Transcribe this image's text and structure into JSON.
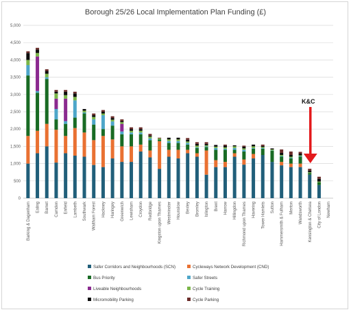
{
  "chart_data": {
    "type": "bar",
    "stacked": true,
    "title": "Borough 25/26 Local Implementation Plan Funding (£)",
    "ylim": [
      0,
      5000
    ],
    "ytick_step": 500,
    "y_tick_labels": [
      "0",
      "500",
      "1,000",
      "1,500",
      "2,000",
      "2,500",
      "3,000",
      "3,500",
      "4,000",
      "4,500",
      "5,000"
    ],
    "grid": true,
    "legend_position": "bottom",
    "categories": [
      "Barking & Dagenham",
      "Ealing",
      "Barnet",
      "Camden",
      "Enfield",
      "Lambeth",
      "Southwark",
      "Waltham Forest",
      "Hackney",
      "Haringey",
      "Greenwich",
      "Lewisham",
      "Croydon",
      "Redbridge",
      "Kingston upon Thames",
      "Westminster",
      "Hounslow",
      "Bexley",
      "Bromley",
      "Islington",
      "Brent",
      "Harrow",
      "Hillingdon",
      "Richmond upon Thames",
      "Havering",
      "Tower Hamlets",
      "Sutton",
      "Hammersmith & Fulham",
      "Merton",
      "Wandsworth",
      "Kensington & Chelsea",
      "City of London",
      "Newham"
    ],
    "series": [
      {
        "name": "Safer Corridors and Neighbourhoods (SCN)",
        "color": "#215f7a",
        "values": [
          1000,
          1300,
          1500,
          1030,
          1300,
          1230,
          1200,
          960,
          900,
          1150,
          1050,
          1050,
          1350,
          1180,
          850,
          1200,
          1150,
          1300,
          1200,
          680,
          900,
          900,
          1200,
          970,
          1150,
          1250,
          1050,
          950,
          900,
          900,
          680,
          380,
          0
        ]
      },
      {
        "name": "Cycleways Network Development (CND)",
        "color": "#e97132",
        "values": [
          800,
          650,
          650,
          950,
          500,
          800,
          700,
          720,
          900,
          550,
          450,
          450,
          200,
          200,
          800,
          200,
          250,
          100,
          100,
          700,
          200,
          150,
          100,
          150,
          130,
          0,
          0,
          100,
          100,
          100,
          0,
          0,
          0
        ]
      },
      {
        "name": "Bus Priority",
        "color": "#196b24",
        "values": [
          1750,
          1100,
          1300,
          300,
          350,
          300,
          550,
          450,
          200,
          400,
          350,
          350,
          300,
          300,
          50,
          200,
          200,
          150,
          150,
          100,
          300,
          350,
          100,
          230,
          150,
          180,
          320,
          150,
          150,
          200,
          50,
          80,
          0
        ]
      },
      {
        "name": "Safer Streets",
        "color": "#4ea6c9",
        "values": [
          300,
          50,
          50,
          300,
          80,
          500,
          30,
          150,
          400,
          120,
          80,
          50,
          50,
          50,
          0,
          50,
          50,
          50,
          20,
          20,
          50,
          30,
          50,
          50,
          20,
          20,
          10,
          20,
          20,
          20,
          0,
          0,
          0
        ]
      },
      {
        "name": "Liveable Neighbourhoods",
        "color": "#8b2a8f",
        "values": [
          0,
          1000,
          0,
          300,
          650,
          0,
          0,
          0,
          0,
          0,
          220,
          0,
          0,
          0,
          0,
          0,
          0,
          0,
          0,
          0,
          0,
          0,
          0,
          0,
          0,
          0,
          0,
          0,
          0,
          0,
          0,
          0,
          0
        ]
      },
      {
        "name": "Cycle Training",
        "color": "#7ab648",
        "values": [
          150,
          100,
          100,
          150,
          100,
          100,
          50,
          70,
          50,
          50,
          50,
          50,
          50,
          50,
          30,
          50,
          50,
          40,
          50,
          30,
          40,
          40,
          50,
          40,
          50,
          30,
          30,
          30,
          30,
          20,
          20,
          20,
          0
        ]
      },
      {
        "name": "Micromobility Parking",
        "color": "#0d0d0d",
        "values": [
          200,
          100,
          80,
          50,
          100,
          100,
          50,
          50,
          50,
          50,
          30,
          50,
          50,
          30,
          0,
          50,
          50,
          50,
          50,
          40,
          50,
          50,
          30,
          50,
          50,
          30,
          30,
          60,
          50,
          50,
          50,
          80,
          0
        ]
      },
      {
        "name": "Cycle Parking",
        "color": "#6b2d2a",
        "values": [
          50,
          50,
          50,
          50,
          50,
          50,
          0,
          50,
          50,
          50,
          50,
          50,
          50,
          50,
          20,
          0,
          0,
          50,
          50,
          50,
          0,
          30,
          0,
          30,
          0,
          40,
          0,
          100,
          100,
          50,
          50,
          60,
          0
        ]
      }
    ],
    "annotations": [
      {
        "text": "K&C",
        "target_category": "Kensington & Chelsea",
        "arrow_color": "#e31a1c"
      }
    ]
  }
}
